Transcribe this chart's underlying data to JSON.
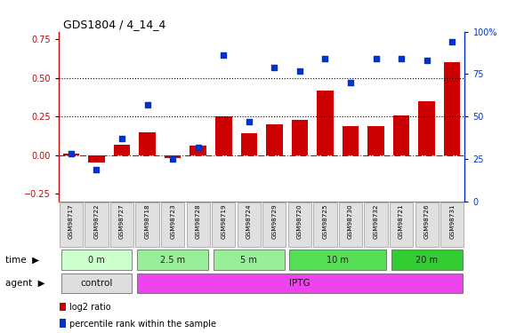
{
  "title": "GDS1804 / 4_14_4",
  "samples": [
    "GSM98717",
    "GSM98722",
    "GSM98727",
    "GSM98718",
    "GSM98723",
    "GSM98728",
    "GSM98719",
    "GSM98724",
    "GSM98729",
    "GSM98720",
    "GSM98725",
    "GSM98730",
    "GSM98732",
    "GSM98721",
    "GSM98726",
    "GSM98731"
  ],
  "log2_ratio": [
    0.01,
    -0.05,
    0.07,
    0.15,
    -0.02,
    0.06,
    0.25,
    0.14,
    0.2,
    0.23,
    0.42,
    0.19,
    0.19,
    0.26,
    0.35,
    0.6
  ],
  "pct_rank": [
    0.28,
    0.19,
    0.37,
    0.57,
    0.25,
    0.32,
    0.86,
    0.47,
    0.79,
    0.77,
    0.84,
    0.7,
    0.84,
    0.84,
    0.83,
    0.94
  ],
  "bar_color": "#cc0000",
  "dot_color": "#0033cc",
  "hline0_color": "#cc0000",
  "hline_dotted_vals": [
    0.25,
    0.5
  ],
  "ylim_left": [
    -0.3,
    0.8
  ],
  "ylim_right": [
    0.0,
    1.0
  ],
  "yticks_left": [
    -0.25,
    0.0,
    0.25,
    0.5,
    0.75
  ],
  "yticks_right_vals": [
    0.0,
    0.25,
    0.5,
    0.75,
    1.0
  ],
  "yticks_right_labels": [
    "0",
    "25",
    "50",
    "75",
    "100%"
  ],
  "time_groups": [
    {
      "label": "0 m",
      "start": 0,
      "end": 3,
      "color": "#ccffcc"
    },
    {
      "label": "2.5 m",
      "start": 3,
      "end": 6,
      "color": "#99ee99"
    },
    {
      "label": "5 m",
      "start": 6,
      "end": 9,
      "color": "#99ee99"
    },
    {
      "label": "10 m",
      "start": 9,
      "end": 13,
      "color": "#55dd55"
    },
    {
      "label": "20 m",
      "start": 13,
      "end": 16,
      "color": "#33cc33"
    }
  ],
  "agent_groups": [
    {
      "label": "control",
      "start": 0,
      "end": 3,
      "color": "#dddddd"
    },
    {
      "label": "IPTG",
      "start": 3,
      "end": 16,
      "color": "#ee44ee"
    }
  ],
  "legend_items": [
    {
      "color": "#cc0000",
      "label": "log2 ratio"
    },
    {
      "color": "#0033cc",
      "label": "percentile rank within the sample"
    }
  ],
  "bg_color": "#ffffff"
}
